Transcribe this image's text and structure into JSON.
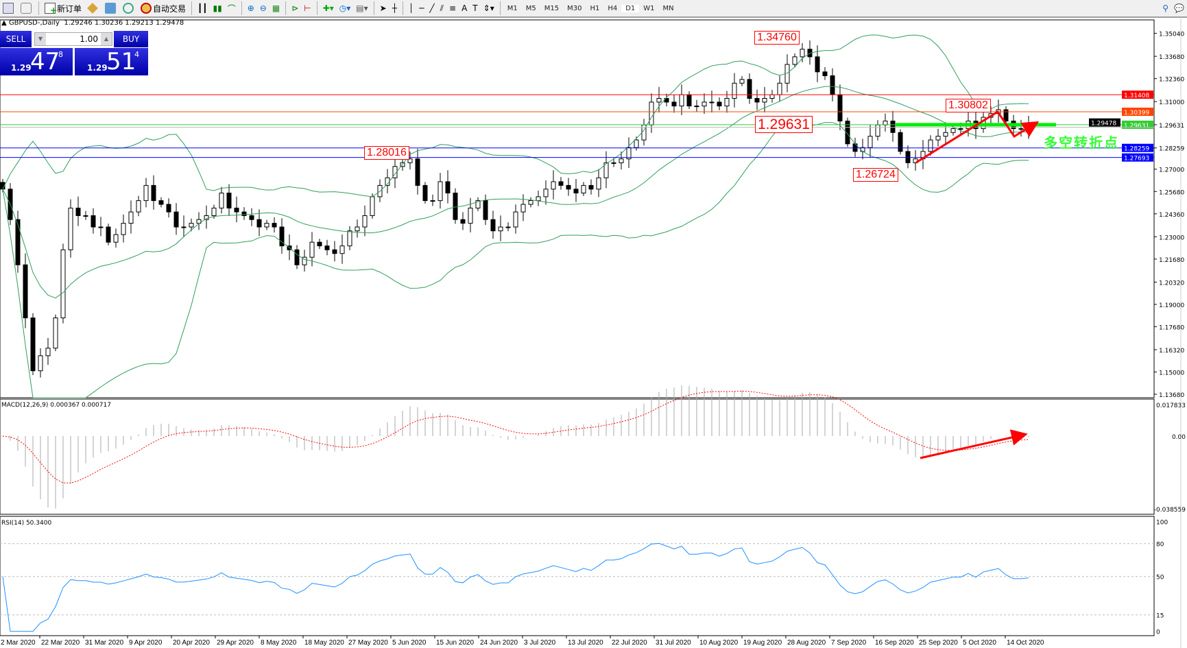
{
  "toolbar": {
    "new_order": "新订单",
    "auto_trading": "自动交易",
    "timeframes": [
      "M1",
      "M5",
      "M15",
      "M30",
      "H1",
      "H4",
      "D1",
      "W1",
      "MN"
    ],
    "active_timeframe": "D1"
  },
  "header": {
    "symbol": "GBPUSD-,Daily",
    "ohlc": "1.29246 1.30236 1.29213 1.29478"
  },
  "trade_panel": {
    "sell": "SELL",
    "buy": "BUY",
    "lot": "1.00",
    "sell_price": {
      "prefix": "1.29",
      "big": "47",
      "sup": "8"
    },
    "buy_price": {
      "prefix": "1.29",
      "big": "51",
      "sup": "4"
    }
  },
  "chart_data": {
    "type": "candlestick",
    "symbol": "GBPUSD",
    "timeframe": "Daily",
    "closes": [
      1.2582,
      1.2402,
      1.2134,
      1.182,
      1.1507,
      1.1596,
      1.1641,
      1.182,
      1.2223,
      1.247,
      1.2425,
      1.2425,
      1.2358,
      1.2358,
      1.2268,
      1.2313,
      1.238,
      1.2447,
      1.2514,
      1.2604,
      1.2514,
      1.2492,
      1.2447,
      1.2358,
      1.2358,
      1.238,
      1.2402,
      1.2425,
      1.247,
      1.2559,
      1.247,
      1.2447,
      1.2425,
      1.2402,
      1.2358,
      1.238,
      1.2358,
      1.2246,
      1.2223,
      1.2134,
      1.2179,
      1.2268,
      1.2246,
      1.2223,
      1.2201,
      1.2246,
      1.2335,
      1.2358,
      1.2425,
      1.2537,
      1.2604,
      1.2649,
      1.2716,
      1.2738,
      1.2761,
      1.2604,
      1.2514,
      1.2514,
      1.2626,
      1.2559,
      1.2402,
      1.238,
      1.247,
      1.2514,
      1.2402,
      1.2335,
      1.2358,
      1.2358,
      1.2447,
      1.2492,
      1.2514,
      1.2537,
      1.2582,
      1.2626,
      1.2604,
      1.2582,
      1.2559,
      1.2604,
      1.2582,
      1.2649,
      1.2738,
      1.2738,
      1.2761,
      1.2828,
      1.2873,
      1.2962,
      1.3097,
      1.3119,
      1.3097,
      1.3074,
      1.3141,
      1.3074,
      1.3074,
      1.3097,
      1.3097,
      1.3074,
      1.3119,
      1.3209,
      1.3231,
      1.3119,
      1.3097,
      1.3119,
      1.3141,
      1.3209,
      1.332,
      1.3365,
      1.341,
      1.3365,
      1.3276,
      1.3253,
      1.3141,
      1.2985,
      1.285,
      1.2805,
      1.2828,
      1.2895,
      1.2962,
      1.2985,
      1.2917,
      1.2805,
      1.2738,
      1.2761,
      1.2805,
      1.2873,
      1.2895,
      1.2917,
      1.294,
      1.294,
      1.2985,
      1.294,
      1.3007,
      1.3029,
      1.3052,
      1.2985,
      1.294,
      1.294,
      1.2948
    ],
    "price_ticks": [
      "1.35040",
      "1.33680",
      "1.32360",
      "1.31000",
      "1.29631",
      "1.28259",
      "1.27000",
      "1.25680",
      "1.24360",
      "1.23000",
      "1.21680",
      "1.20320",
      "1.19000",
      "1.17680",
      "1.16320",
      "1.15000",
      "1.13680"
    ],
    "price_range": [
      1.1368,
      1.3504
    ],
    "date_labels": [
      "2 Mar 2020",
      "22 Mar 2020",
      "31 Mar 2020",
      "9 Apr 2020",
      "20 Apr 2020",
      "29 Apr 2020",
      "8 May 2020",
      "18 May 2020",
      "27 May 2020",
      "5 Jun 2020",
      "15 Jun 2020",
      "24 Jun 2020",
      "3 Jul 2020",
      "13 Jul 2020",
      "22 Jul 2020",
      "31 Jul 2020",
      "10 Aug 2020",
      "19 Aug 2020",
      "28 Aug 2020",
      "7 Sep 2020",
      "16 Sep 2020",
      "25 Sep 2020",
      "5 Oct 2020",
      "14 Oct 2020"
    ],
    "hlines": [
      {
        "value": "1.31408",
        "color": "#ff0000"
      },
      {
        "value": "1.30399",
        "color": "#ff4500"
      },
      {
        "value": "1.29631",
        "color": "#32cd32"
      },
      {
        "value": "1.29478",
        "color": "#000000"
      },
      {
        "value": "1.28259",
        "color": "#0000ff"
      },
      {
        "value": "1.27693",
        "color": "#0000ff"
      }
    ],
    "annotations": {
      "high": "1.34760",
      "jun_high": "1.28016",
      "pivot": "1.29631",
      "oct_high": "1.30802",
      "sep_low": "1.26724",
      "pivot_text": "多空转折点"
    },
    "indicators": {
      "bands": "Bollinger Bands (20)",
      "macd": {
        "label": "MACD(12,26,9) 0.000367 0.000717",
        "top": "0.017833",
        "zero": "0.00",
        "bottom": "-0.038559"
      },
      "rsi": {
        "label": "RSI(14) 50.3400",
        "levels": [
          "100",
          "80",
          "50",
          "15",
          "0"
        ]
      }
    }
  }
}
